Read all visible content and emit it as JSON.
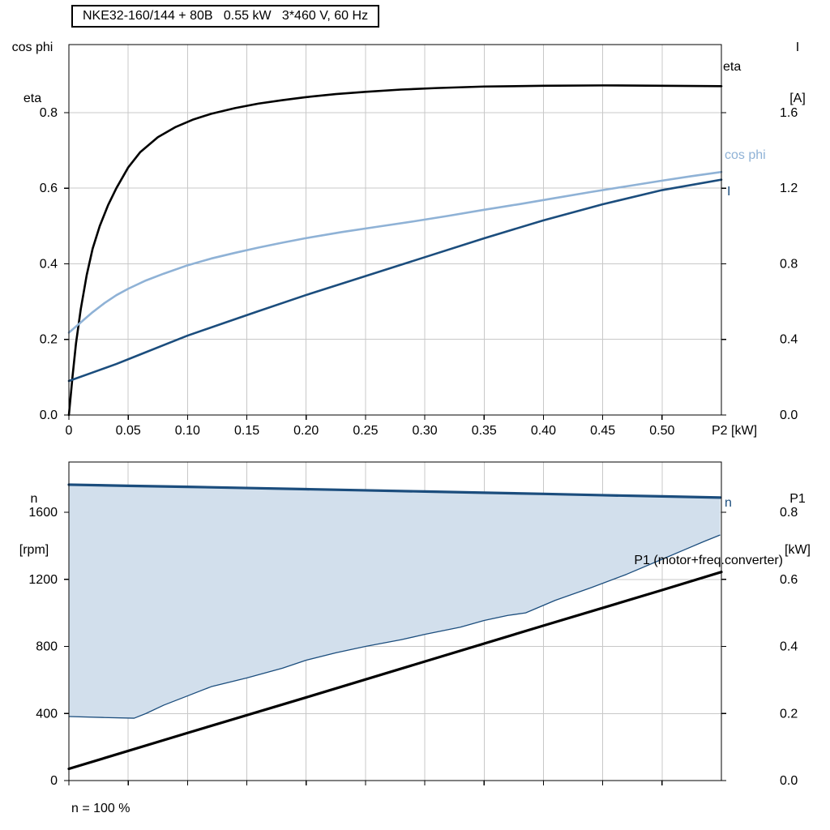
{
  "title_box": "NKE32-160/144 + 80B   0.55 kW   3*460 V, 60 Hz",
  "labels": {
    "top_left_axis_line1": "cos phi",
    "top_left_axis_line2": "eta",
    "top_right_axis_line1": "I",
    "top_right_axis_line2": "[A]",
    "x_unit": "P2 [kW]",
    "eta_curve": "eta",
    "cos_phi_curve": "cos phi",
    "current_curve": "I",
    "bottom_left_axis_line1": "n",
    "bottom_left_axis_line2": "[rpm]",
    "bottom_right_axis_line1": "P1",
    "bottom_right_axis_line2": "[kW]",
    "n_curve": "n",
    "p1_curve": "P1 (motor+freq.converter)",
    "footnote": "n = 100 %"
  },
  "colors": {
    "black": "#000000",
    "dark_blue": "#1b4d7d",
    "light_blue": "#8fb2d6",
    "band_fill": "#d2dfec",
    "grid": "#c8c8c8"
  },
  "chart_data": [
    {
      "type": "line",
      "name": "top-chart",
      "title": "NKE32-160/144 + 80B   0.55 kW   3*460 V, 60 Hz",
      "xlabel": "P2 [kW]",
      "ylabel_left": "cos phi / eta",
      "ylabel_right": "I [A]",
      "xlim": [
        0,
        0.55
      ],
      "ylim_left": [
        0,
        0.98
      ],
      "ylim_right": [
        0,
        1.96
      ],
      "grid_color": "#c8c8c8",
      "show_x_labels": true,
      "x_ticks": [
        {
          "v": 0,
          "label": "0"
        },
        {
          "v": 0.05,
          "label": "0.05"
        },
        {
          "v": 0.1,
          "label": "0.10"
        },
        {
          "v": 0.15,
          "label": "0.15"
        },
        {
          "v": 0.2,
          "label": "0.20"
        },
        {
          "v": 0.25,
          "label": "0.25"
        },
        {
          "v": 0.3,
          "label": "0.30"
        },
        {
          "v": 0.35,
          "label": "0.35"
        },
        {
          "v": 0.4,
          "label": "0.40"
        },
        {
          "v": 0.45,
          "label": "0.45"
        },
        {
          "v": 0.5,
          "label": "0.50"
        }
      ],
      "y_ticks_left": [
        {
          "v": 0,
          "label": "0.0"
        },
        {
          "v": 0.2,
          "label": "0.2"
        },
        {
          "v": 0.4,
          "label": "0.4"
        },
        {
          "v": 0.6,
          "label": "0.6"
        },
        {
          "v": 0.8,
          "label": "0.8"
        }
      ],
      "y_ticks_right": [
        {
          "v": 0,
          "label": "0.0"
        },
        {
          "v": 0.4,
          "label": "0.4"
        },
        {
          "v": 0.8,
          "label": "0.8"
        },
        {
          "v": 1.2,
          "label": "1.2"
        },
        {
          "v": 1.6,
          "label": "1.6"
        }
      ],
      "series": [
        {
          "name": "eta",
          "axis": "left",
          "color": "#000000",
          "width": 2.6,
          "points": [
            [
              0,
              0
            ],
            [
              0.003,
              0.1
            ],
            [
              0.006,
              0.19
            ],
            [
              0.01,
              0.28
            ],
            [
              0.015,
              0.37
            ],
            [
              0.02,
              0.44
            ],
            [
              0.026,
              0.5
            ],
            [
              0.033,
              0.555
            ],
            [
              0.04,
              0.6
            ],
            [
              0.05,
              0.655
            ],
            [
              0.06,
              0.695
            ],
            [
              0.075,
              0.735
            ],
            [
              0.09,
              0.762
            ],
            [
              0.105,
              0.782
            ],
            [
              0.12,
              0.797
            ],
            [
              0.14,
              0.812
            ],
            [
              0.16,
              0.824
            ],
            [
              0.18,
              0.833
            ],
            [
              0.2,
              0.841
            ],
            [
              0.225,
              0.849
            ],
            [
              0.25,
              0.855
            ],
            [
              0.28,
              0.861
            ],
            [
              0.31,
              0.865
            ],
            [
              0.35,
              0.869
            ],
            [
              0.4,
              0.871
            ],
            [
              0.45,
              0.872
            ],
            [
              0.5,
              0.871
            ],
            [
              0.55,
              0.87
            ]
          ]
        },
        {
          "name": "cos-phi",
          "axis": "left",
          "color": "#8fb2d6",
          "width": 2.6,
          "points": [
            [
              0,
              0.218
            ],
            [
              0.01,
              0.245
            ],
            [
              0.02,
              0.272
            ],
            [
              0.03,
              0.296
            ],
            [
              0.04,
              0.317
            ],
            [
              0.05,
              0.334
            ],
            [
              0.065,
              0.356
            ],
            [
              0.08,
              0.374
            ],
            [
              0.1,
              0.396
            ],
            [
              0.12,
              0.414
            ],
            [
              0.14,
              0.429
            ],
            [
              0.16,
              0.443
            ],
            [
              0.18,
              0.456
            ],
            [
              0.2,
              0.468
            ],
            [
              0.23,
              0.484
            ],
            [
              0.26,
              0.498
            ],
            [
              0.29,
              0.512
            ],
            [
              0.32,
              0.527
            ],
            [
              0.35,
              0.543
            ],
            [
              0.38,
              0.558
            ],
            [
              0.41,
              0.574
            ],
            [
              0.44,
              0.59
            ],
            [
              0.47,
              0.605
            ],
            [
              0.5,
              0.62
            ],
            [
              0.525,
              0.632
            ],
            [
              0.55,
              0.643
            ]
          ]
        },
        {
          "name": "current",
          "axis": "right",
          "color": "#1b4d7d",
          "width": 2.6,
          "points": [
            [
              0,
              0.18
            ],
            [
              0.02,
              0.225
            ],
            [
              0.04,
              0.27
            ],
            [
              0.06,
              0.32
            ],
            [
              0.08,
              0.37
            ],
            [
              0.1,
              0.42
            ],
            [
              0.13,
              0.485
            ],
            [
              0.16,
              0.55
            ],
            [
              0.2,
              0.635
            ],
            [
              0.25,
              0.735
            ],
            [
              0.3,
              0.835
            ],
            [
              0.35,
              0.935
            ],
            [
              0.4,
              1.03
            ],
            [
              0.45,
              1.115
            ],
            [
              0.5,
              1.19
            ],
            [
              0.55,
              1.245
            ]
          ]
        }
      ]
    },
    {
      "type": "line",
      "name": "bottom-chart",
      "xlabel": "",
      "ylabel_left": "n [rpm]",
      "ylabel_right": "P1 [kW]",
      "annotation": "n = 100 %",
      "xlim": [
        0,
        0.55
      ],
      "ylim_left": [
        0,
        1900
      ],
      "ylim_right": [
        0,
        0.95
      ],
      "grid_color": "#c8c8c8",
      "show_x_labels": false,
      "x_ticks": [
        {
          "v": 0,
          "label": ""
        },
        {
          "v": 0.05,
          "label": ""
        },
        {
          "v": 0.1,
          "label": ""
        },
        {
          "v": 0.15,
          "label": ""
        },
        {
          "v": 0.2,
          "label": ""
        },
        {
          "v": 0.25,
          "label": ""
        },
        {
          "v": 0.3,
          "label": ""
        },
        {
          "v": 0.35,
          "label": ""
        },
        {
          "v": 0.4,
          "label": ""
        },
        {
          "v": 0.45,
          "label": ""
        },
        {
          "v": 0.5,
          "label": ""
        }
      ],
      "y_ticks_left": [
        {
          "v": 0,
          "label": "0"
        },
        {
          "v": 400,
          "label": "400"
        },
        {
          "v": 800,
          "label": "800"
        },
        {
          "v": 1200,
          "label": "1200"
        },
        {
          "v": 1600,
          "label": "1600"
        }
      ],
      "y_ticks_right": [
        {
          "v": 0,
          "label": "0.0"
        },
        {
          "v": 0.2,
          "label": "0.2"
        },
        {
          "v": 0.4,
          "label": "0.4"
        },
        {
          "v": 0.6,
          "label": "0.6"
        },
        {
          "v": 0.8,
          "label": "0.8"
        }
      ],
      "band": {
        "upper_series": "n",
        "fill": "#d2dfec",
        "edge": "#1b4d7d",
        "lower": [
          [
            0,
            382
          ],
          [
            0.03,
            376
          ],
          [
            0.055,
            372
          ],
          [
            0.065,
            400
          ],
          [
            0.08,
            450
          ],
          [
            0.1,
            505
          ],
          [
            0.12,
            560
          ],
          [
            0.15,
            612
          ],
          [
            0.18,
            670
          ],
          [
            0.2,
            718
          ],
          [
            0.225,
            762
          ],
          [
            0.25,
            800
          ],
          [
            0.28,
            840
          ],
          [
            0.3,
            872
          ],
          [
            0.33,
            915
          ],
          [
            0.35,
            955
          ],
          [
            0.37,
            985
          ],
          [
            0.385,
            1000
          ],
          [
            0.41,
            1075
          ],
          [
            0.44,
            1150
          ],
          [
            0.47,
            1230
          ],
          [
            0.5,
            1320
          ],
          [
            0.52,
            1380
          ],
          [
            0.535,
            1425
          ],
          [
            0.549,
            1465
          ]
        ]
      },
      "series": [
        {
          "name": "n",
          "axis": "left",
          "color": "#1b4d7d",
          "width": 3.2,
          "points": [
            [
              0,
              1765
            ],
            [
              0.05,
              1758
            ],
            [
              0.1,
              1752
            ],
            [
              0.15,
              1745
            ],
            [
              0.2,
              1738
            ],
            [
              0.25,
              1731
            ],
            [
              0.3,
              1724
            ],
            [
              0.35,
              1717
            ],
            [
              0.4,
              1710
            ],
            [
              0.45,
              1702
            ],
            [
              0.5,
              1695
            ],
            [
              0.549,
              1688
            ]
          ]
        },
        {
          "name": "p1",
          "axis": "right",
          "color": "#000000",
          "width": 3.2,
          "points": [
            [
              0,
              0.035
            ],
            [
              0.1,
              0.142
            ],
            [
              0.2,
              0.248
            ],
            [
              0.3,
              0.355
            ],
            [
              0.4,
              0.462
            ],
            [
              0.5,
              0.568
            ],
            [
              0.55,
              0.622
            ]
          ]
        }
      ]
    }
  ]
}
